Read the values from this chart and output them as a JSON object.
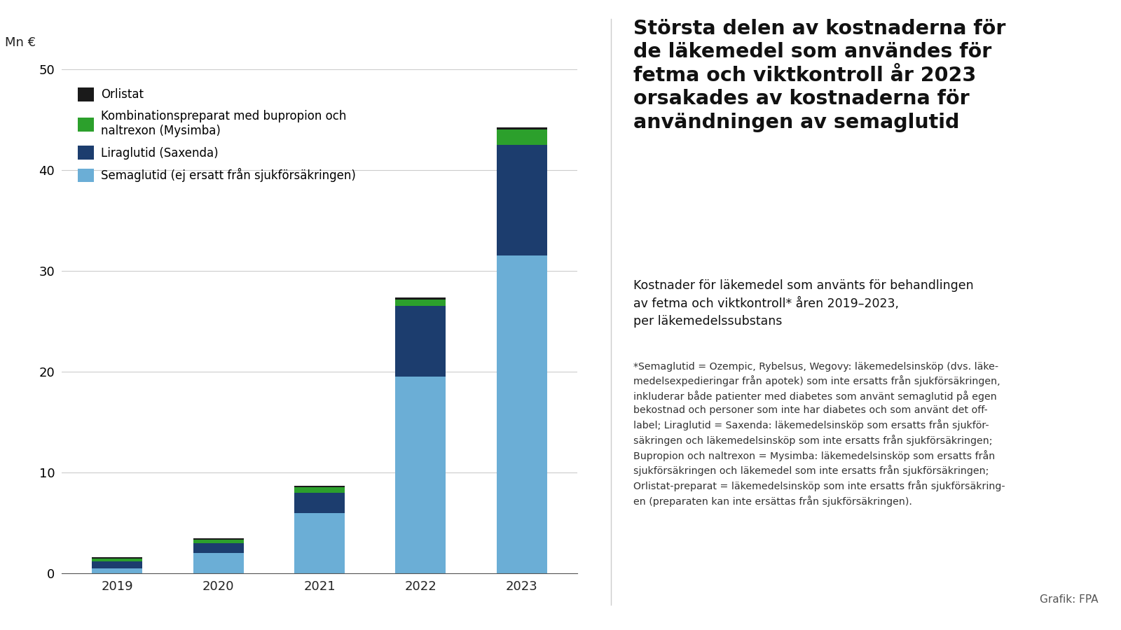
{
  "years": [
    "2019",
    "2020",
    "2021",
    "2022",
    "2023"
  ],
  "semaglutid": [
    0.5,
    2.0,
    6.0,
    19.5,
    31.5
  ],
  "liraglutid": [
    0.7,
    1.0,
    2.0,
    7.0,
    11.0
  ],
  "kombinationspreparat": [
    0.25,
    0.35,
    0.55,
    0.65,
    1.5
  ],
  "orlistat": [
    0.12,
    0.12,
    0.15,
    0.18,
    0.22
  ],
  "colors": {
    "semaglutid": "#6baed6",
    "liraglutid": "#1c3d6e",
    "kombinationspreparat": "#2ca02c",
    "orlistat": "#1a1a1a"
  },
  "ylabel": "Mn €",
  "ylim": [
    0,
    50
  ],
  "yticks": [
    0,
    10,
    20,
    30,
    40,
    50
  ],
  "legend_labels": {
    "orlistat": "Orlistat",
    "kombinationspreparat": "Kombinationspreparat med bupropion och\nnaltrexon (Mysimba)",
    "liraglutid": "Liraglutid (Saxenda)",
    "semaglutid": "Semaglutid (ej ersatt från sjukförsäkringen)"
  },
  "title_bold": "Största delen av kostnaderna för\nde läkemedel som användes för\nfetma och viktkontroll år 2023\norsakades av kostnaderna för\nanvändningen av semaglutid",
  "subtitle": "Kostnader för läkemedel som använts för behandlingen\nav fetma och viktkontroll* åren 2019–2023,\nper läkemedelssubstans",
  "footnote": "*Semaglutid = Ozempic, Rybelsus, Wegovy: läkemedelsinsköp (dvs. läke-\nmedelsexpedieringar från apotek) som inte ersatts från sjukförsäkringen,\ninkluderar både patienter med diabetes som använt semaglutid på egen\nbekostnad och personer som inte har diabetes och som använt det off-\nlabel; Liraglutid = Saxenda: läkemedelsinsköp som ersatts från sjukför-\nsäkringen och läkemedelsinsköp som inte ersatts från sjukförsäkringen;\nBupropion och naltrexon = Mysimba: läkemedelsinsköp som ersatts från\nsjukförsäkringen och läkemedel som inte ersatts från sjukförsäkringen;\nOrlistat-preparat = läkemedelsinsköp som inte ersatts från sjukförsäkring-\nen (preparaten kan inte ersättas från sjukförsäkringen).",
  "grafik_label": "Grafik: FPA",
  "background_color": "#ffffff"
}
